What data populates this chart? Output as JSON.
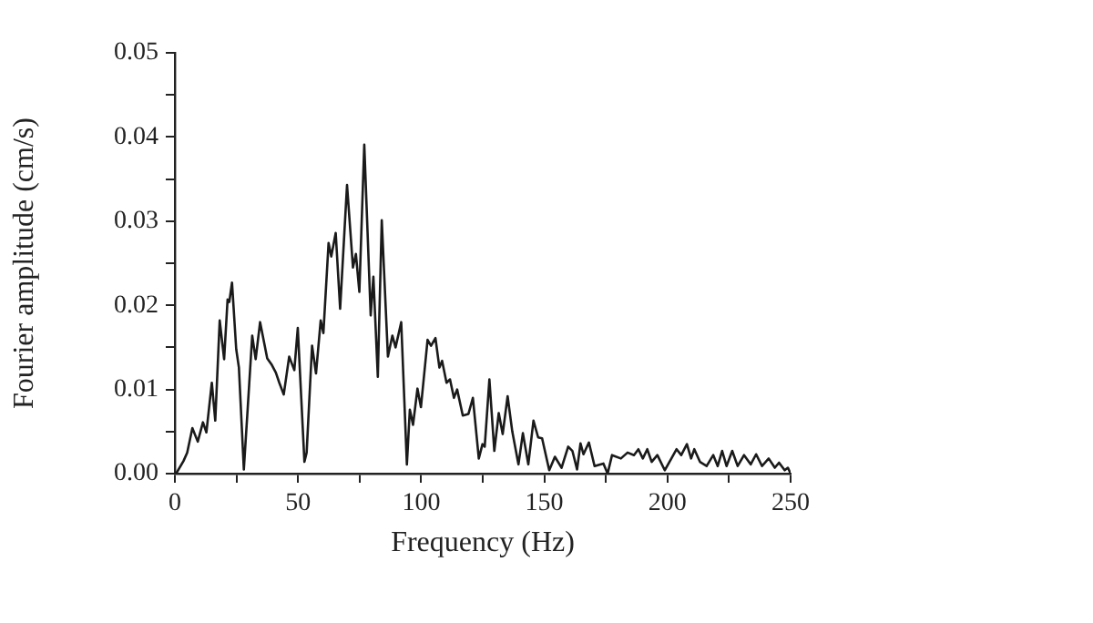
{
  "chart_data": {
    "type": "line",
    "xlabel": "Frequency (Hz)",
    "ylabel": "Fourier amplitude (cm/s)",
    "color": "#1a1a1a",
    "marker": "none",
    "grid": false,
    "legend": false,
    "xlim": [
      0,
      250
    ],
    "xticks": [
      0,
      {
        "value": 25,
        "label": null
      },
      50,
      {
        "value": 75,
        "label": null
      },
      100,
      {
        "value": 125,
        "label": null
      },
      150,
      {
        "value": 175,
        "label": null
      },
      200,
      {
        "value": 225,
        "label": null
      },
      250
    ],
    "ylim": [
      0,
      0.05
    ],
    "yticks": [
      {
        "value": 0,
        "label": "0.00"
      },
      {
        "value": 0.005,
        "label": null
      },
      {
        "value": 0.01,
        "label": "0.01"
      },
      {
        "value": 0.015,
        "label": null
      },
      {
        "value": 0.02,
        "label": "0.02"
      },
      {
        "value": 0.025,
        "label": null
      },
      {
        "value": 0.03,
        "label": "0.03"
      },
      {
        "value": 0.035,
        "label": null
      },
      {
        "value": 0.04,
        "label": "0.04"
      },
      {
        "value": 0.045,
        "label": null
      },
      {
        "value": 0.05,
        "label": "0.05"
      }
    ],
    "x": [
      0.5,
      3.5,
      5.0,
      7.1,
      9.3,
      11.4,
      12.8,
      15.0,
      16.4,
      18.2,
      20.0,
      21.4,
      22.1,
      23.2,
      24.9,
      26.0,
      28.0,
      29.6,
      31.4,
      32.8,
      34.6,
      37.5,
      39.2,
      41.0,
      42.4,
      44.2,
      46.4,
      48.5,
      49.9,
      52.6,
      53.5,
      55.7,
      57.3,
      59.2,
      60.3,
      62.4,
      63.5,
      65.3,
      67.1,
      69.9,
      72.3,
      73.5,
      74.9,
      76.9,
      79.5,
      80.6,
      82.4,
      84.0,
      86.5,
      88.3,
      89.6,
      91.9,
      94.2,
      95.4,
      96.7,
      98.5,
      99.9,
      102.6,
      104.0,
      105.8,
      107.4,
      108.5,
      110.3,
      111.7,
      113.3,
      114.6,
      116.9,
      119.2,
      121.0,
      123.4,
      124.9,
      125.8,
      127.7,
      129.7,
      131.5,
      133.1,
      135.1,
      137.0,
      139.5,
      141.3,
      143.5,
      145.6,
      147.5,
      149.1,
      152.0,
      154.3,
      157.0,
      159.7,
      161.4,
      163.3,
      164.7,
      165.9,
      168.1,
      170.4,
      174.0,
      175.7,
      177.5,
      181.1,
      183.8,
      186.4,
      188.2,
      190.0,
      191.8,
      193.6,
      195.9,
      198.9,
      201.6,
      203.7,
      205.6,
      207.9,
      209.6,
      210.9,
      213.2,
      215.9,
      218.6,
      220.4,
      222.2,
      224.0,
      226.3,
      228.5,
      231.1,
      233.8,
      236.0,
      238.4,
      241.1,
      243.6,
      245.3,
      247.6,
      248.9,
      250
    ],
    "values": [
      0,
      0.0015,
      0.0025,
      0.0054,
      0.0038,
      0.0061,
      0.0049,
      0.0108,
      0.0063,
      0.0182,
      0.0136,
      0.0207,
      0.0204,
      0.0227,
      0.0148,
      0.0126,
      0.0005,
      0.0079,
      0.0164,
      0.0136,
      0.018,
      0.0137,
      0.013,
      0.012,
      0.0108,
      0.0094,
      0.0139,
      0.0123,
      0.0173,
      0.0014,
      0.0025,
      0.0152,
      0.0119,
      0.0182,
      0.0167,
      0.0274,
      0.0258,
      0.0286,
      0.0196,
      0.0343,
      0.0245,
      0.0261,
      0.0216,
      0.0391,
      0.0188,
      0.0234,
      0.0115,
      0.0301,
      0.0139,
      0.0164,
      0.015,
      0.018,
      0.0011,
      0.0076,
      0.0058,
      0.0101,
      0.0079,
      0.0159,
      0.0152,
      0.0161,
      0.0126,
      0.0134,
      0.0108,
      0.0112,
      0.009,
      0.01,
      0.0069,
      0.0071,
      0.009,
      0.0018,
      0.0035,
      0.0032,
      0.0112,
      0.0027,
      0.0072,
      0.0047,
      0.0092,
      0.005,
      0.0011,
      0.0048,
      0.0011,
      0.0063,
      0.0043,
      0.0042,
      0.0004,
      0.002,
      0.0007,
      0.0032,
      0.0027,
      0.0005,
      0.0036,
      0.0023,
      0.0037,
      0.0009,
      0.0012,
      0,
      0.0022,
      0.0018,
      0.0025,
      0.0022,
      0.0029,
      0.0018,
      0.0029,
      0.0014,
      0.0022,
      0.0004,
      0.0018,
      0.0029,
      0.0022,
      0.0035,
      0.0018,
      0.0029,
      0.0014,
      0.0009,
      0.0022,
      0.0009,
      0.0027,
      0.0009,
      0.0027,
      0.0009,
      0.0022,
      0.0011,
      0.0023,
      0.0009,
      0.0018,
      0.0007,
      0.0013,
      0.0004,
      0.0007,
      0
    ]
  }
}
